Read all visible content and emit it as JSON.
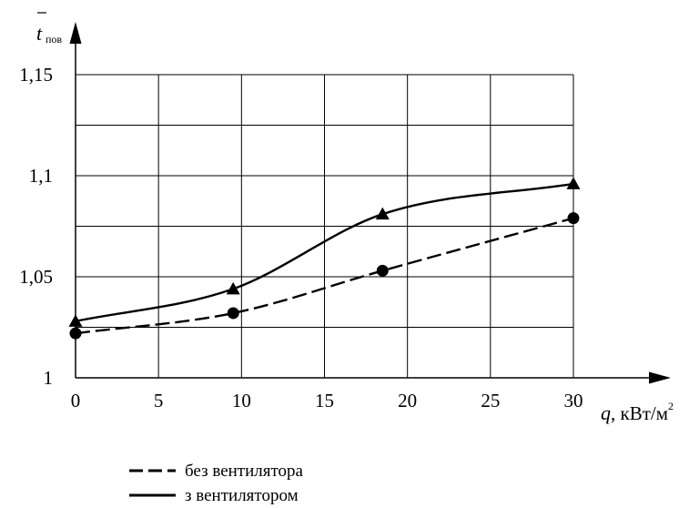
{
  "chart_data": {
    "type": "line",
    "x_ticks": [
      "0",
      "5",
      "10",
      "15",
      "20",
      "25",
      "30"
    ],
    "y_ticks": [
      "1",
      "1,05",
      "1,1",
      "1,15"
    ],
    "xlim": [
      0,
      30
    ],
    "ylim": [
      1,
      1.15
    ],
    "grid": true,
    "xlabel_var": "q",
    "xlabel_unit": ", кВт/м",
    "xlabel_sup": "2",
    "ylabel_var": "t",
    "ylabel_sub": "пов",
    "legend_position": "bottom-left",
    "series": [
      {
        "name": "без вентилятора",
        "style": "dashed",
        "marker": "circle",
        "color": "#000000",
        "x": [
          0,
          9.5,
          18.5,
          30
        ],
        "values": [
          1.022,
          1.032,
          1.053,
          1.079
        ]
      },
      {
        "name": "з вентилятором",
        "style": "solid",
        "marker": "triangle",
        "color": "#000000",
        "x": [
          0,
          9.5,
          18.5,
          30
        ],
        "values": [
          1.028,
          1.044,
          1.081,
          1.096
        ]
      }
    ]
  }
}
